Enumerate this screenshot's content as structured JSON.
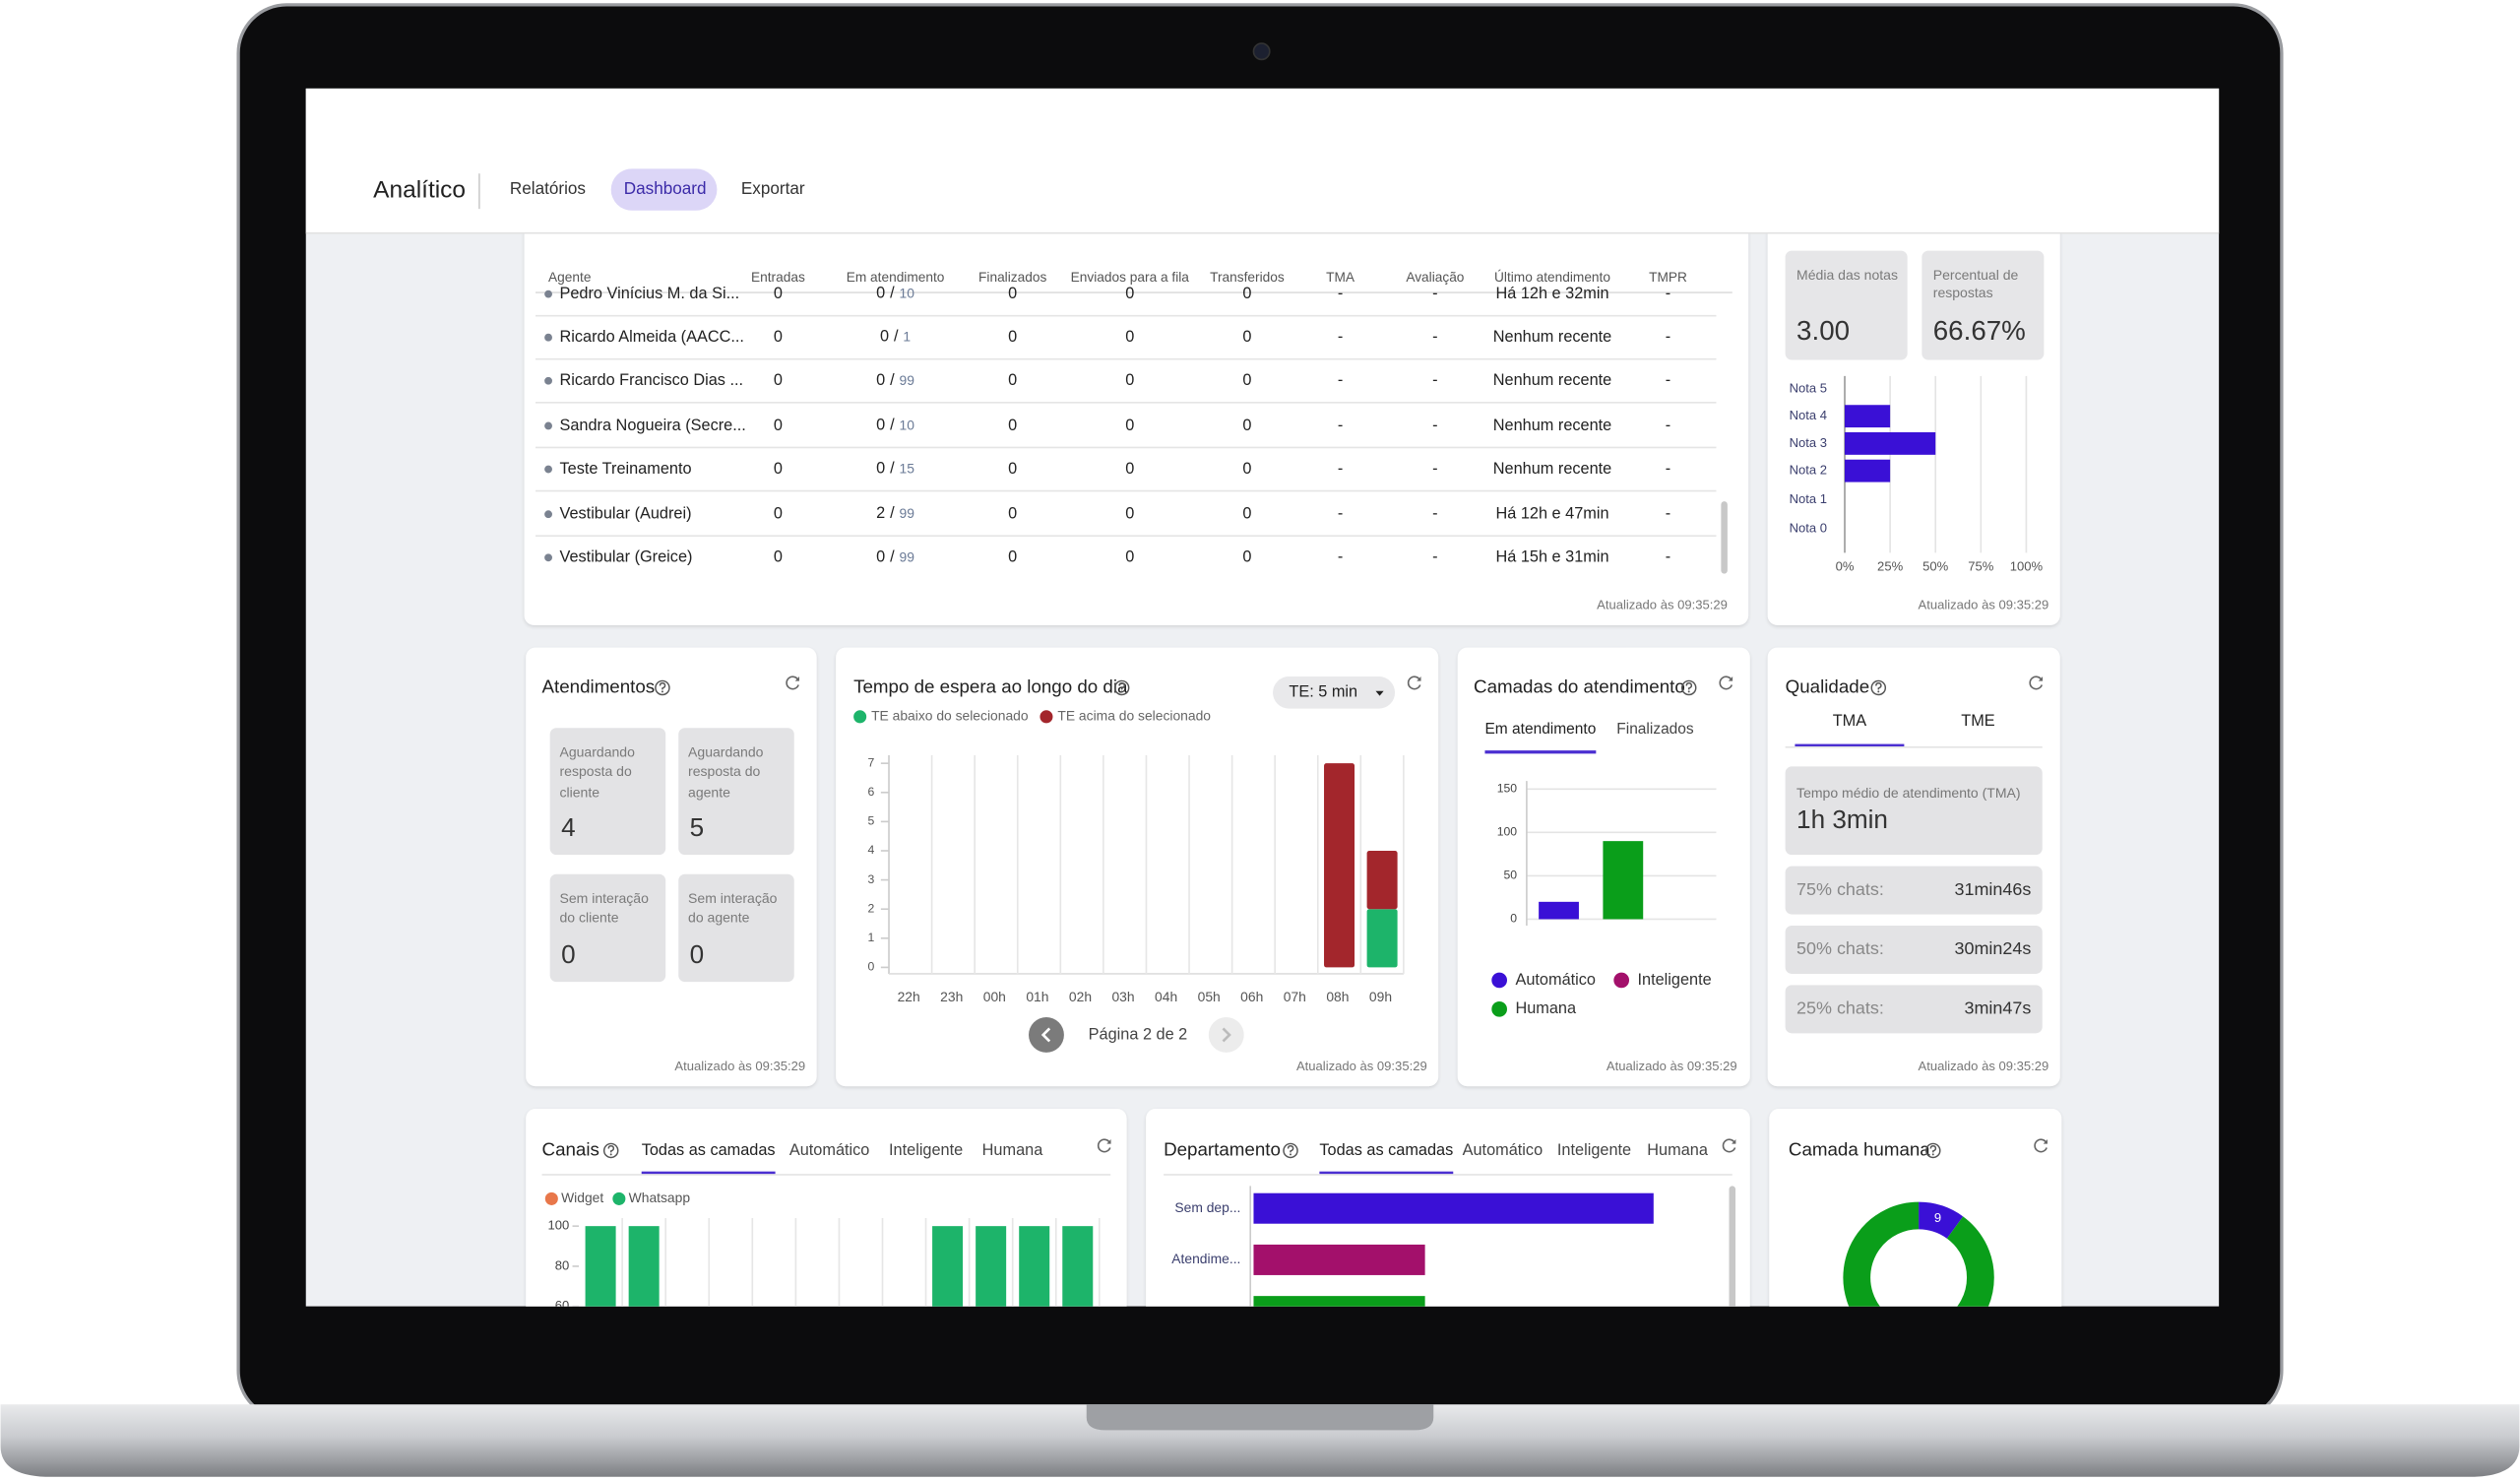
{
  "header": {
    "title": "Analítico",
    "tabs": [
      "Relatórios",
      "Dashboard",
      "Exportar"
    ],
    "active_tab": 1
  },
  "agents_table": {
    "columns": [
      "Agente",
      "Entradas",
      "Em atendimento",
      "Finalizados",
      "Enviados para a fila",
      "Transferidos",
      "TMA",
      "Avaliação",
      "Último atendimento",
      "TMPR"
    ],
    "separator": "/",
    "rows": [
      [
        "Pedro Vinícius M. da Si...",
        0,
        0,
        10,
        0,
        0,
        0,
        "-",
        "-",
        "Há 12h e 32min",
        "-"
      ],
      [
        "Ricardo Almeida (AACC...",
        0,
        0,
        1,
        0,
        0,
        0,
        "-",
        "-",
        "Nenhum recente",
        "-"
      ],
      [
        "Ricardo Francisco Dias ...",
        0,
        0,
        99,
        0,
        0,
        0,
        "-",
        "-",
        "Nenhum recente",
        "-"
      ],
      [
        "Sandra Nogueira (Secre...",
        0,
        0,
        10,
        0,
        0,
        0,
        "-",
        "-",
        "Nenhum recente",
        "-"
      ],
      [
        "Teste Treinamento",
        0,
        0,
        15,
        0,
        0,
        0,
        "-",
        "-",
        "Nenhum recente",
        "-"
      ],
      [
        "Vestibular (Audrei)",
        0,
        2,
        99,
        0,
        0,
        0,
        "-",
        "-",
        "Há 12h e 47min",
        "-"
      ],
      [
        "Vestibular (Greice)",
        0,
        0,
        99,
        0,
        0,
        0,
        "-",
        "-",
        "Há 15h e 31min",
        "-"
      ]
    ],
    "updated": "Atualizado às 09:35:29"
  },
  "ratings": {
    "stats": [
      {
        "label": "Média das notas",
        "value": "3.00"
      },
      {
        "label": "Percentual de respostas",
        "value": "66.67%"
      }
    ],
    "chart": {
      "type": "bar",
      "orientation": "horizontal",
      "categories": [
        "Nota 5",
        "Nota 4",
        "Nota 3",
        "Nota 2",
        "Nota 1",
        "Nota 0"
      ],
      "values": [
        0,
        25,
        50,
        25,
        0,
        0
      ],
      "color": "#3a10d6",
      "xlim": [
        0,
        100
      ],
      "xticks": [
        {
          "value": 0,
          "label": "0%"
        },
        {
          "value": 25,
          "label": "25%"
        },
        {
          "value": 50,
          "label": "50%"
        },
        {
          "value": 75,
          "label": "75%"
        },
        {
          "value": 100,
          "label": "100%"
        }
      ],
      "grid": true
    },
    "updated": "Atualizado às 09:35:29"
  },
  "atendimentos": {
    "title": "Atendimentos",
    "boxes": [
      {
        "label": "Aguardando resposta do cliente",
        "value": 4
      },
      {
        "label": "Aguardando resposta do agente",
        "value": 5
      },
      {
        "label": "Sem interação do cliente",
        "value": 0
      },
      {
        "label": "Sem interação do agente",
        "value": 0
      }
    ],
    "updated": "Atualizado às 09:35:29"
  },
  "espera": {
    "title": "Tempo de espera ao longo do dia",
    "dropdown": "TE: 5 min",
    "chart": {
      "type": "bar",
      "stacked": true,
      "categories": [
        "22h",
        "23h",
        "00h",
        "01h",
        "02h",
        "03h",
        "04h",
        "05h",
        "06h",
        "07h",
        "08h",
        "09h"
      ],
      "series": [
        {
          "name": "TE abaixo do selecionado",
          "color": "#1db46a",
          "values": [
            0,
            0,
            0,
            0,
            0,
            0,
            0,
            0,
            0,
            0,
            0,
            2
          ]
        },
        {
          "name": "TE acima do selecionado",
          "color": "#a3262c",
          "values": [
            0,
            0,
            0,
            0,
            0,
            0,
            0,
            0,
            0,
            0,
            7,
            2
          ]
        }
      ],
      "ylim": [
        0,
        7
      ],
      "yticks": [
        0,
        1,
        2,
        3,
        4,
        5,
        6,
        7
      ],
      "grid": true
    },
    "pagination": "Página 2 de 2",
    "updated": "Atualizado às 09:35:29"
  },
  "camadas": {
    "title": "Camadas do atendimento",
    "tabs": [
      "Em atendimento",
      "Finalizados"
    ],
    "active_tab": 0,
    "chart": {
      "type": "bar",
      "series": [
        {
          "name": "Automático",
          "color": "#3a10d6",
          "values": [
            20
          ]
        },
        {
          "name": "Inteligente",
          "color": "#a3106b",
          "values": [
            0
          ]
        },
        {
          "name": "Humana",
          "color": "#0a9e1a",
          "values": [
            90
          ]
        }
      ],
      "ylim": [
        0,
        150
      ],
      "yticks": [
        0,
        50,
        100,
        150
      ],
      "grid": true
    },
    "updated": "Atualizado às 09:35:29"
  },
  "qualidade": {
    "title": "Qualidade",
    "tabs": [
      "TMA",
      "TME"
    ],
    "active_tab": 0,
    "summary": {
      "label": "Tempo médio de atendimento (TMA)",
      "value": "1h 3min"
    },
    "rows": [
      {
        "label": "75% chats:",
        "value": "31min46s"
      },
      {
        "label": "50% chats:",
        "value": "30min24s"
      },
      {
        "label": "25% chats:",
        "value": "3min47s"
      }
    ],
    "updated": "Atualizado às 09:35:29"
  },
  "canais": {
    "title": "Canais",
    "tabs": [
      "Todas as camadas",
      "Automático",
      "Inteligente",
      "Humana"
    ],
    "active_tab": 0,
    "chart": {
      "type": "bar",
      "series": [
        {
          "name": "Widget",
          "color": "#e8774a",
          "values": [
            0,
            0,
            0,
            0,
            0,
            0,
            0,
            0,
            0,
            0,
            0,
            0
          ]
        },
        {
          "name": "Whatsapp",
          "color": "#1db46a",
          "values": [
            100,
            100,
            0,
            0,
            0,
            0,
            0,
            0,
            100,
            100,
            100,
            100
          ]
        }
      ],
      "ylim": [
        0,
        100
      ],
      "yticks": [
        60,
        80,
        100
      ]
    }
  },
  "departamento": {
    "title": "Departamento",
    "tabs": [
      "Todas as camadas",
      "Automático",
      "Inteligente",
      "Humana"
    ],
    "active_tab": 0,
    "chart": {
      "type": "bar",
      "orientation": "horizontal",
      "categories": [
        "Sem dep...",
        "Atendime...",
        null
      ],
      "values": [
        70,
        30,
        30
      ],
      "colors": [
        "#3a10d6",
        "#a3106b",
        "#0a9e1a"
      ]
    }
  },
  "camada_humana": {
    "title": "Camada humana",
    "chart": {
      "type": "pie",
      "donut": true,
      "values": [
        9,
        81
      ],
      "colors": [
        "#3a10d6",
        "#0a9e1a"
      ]
    }
  }
}
